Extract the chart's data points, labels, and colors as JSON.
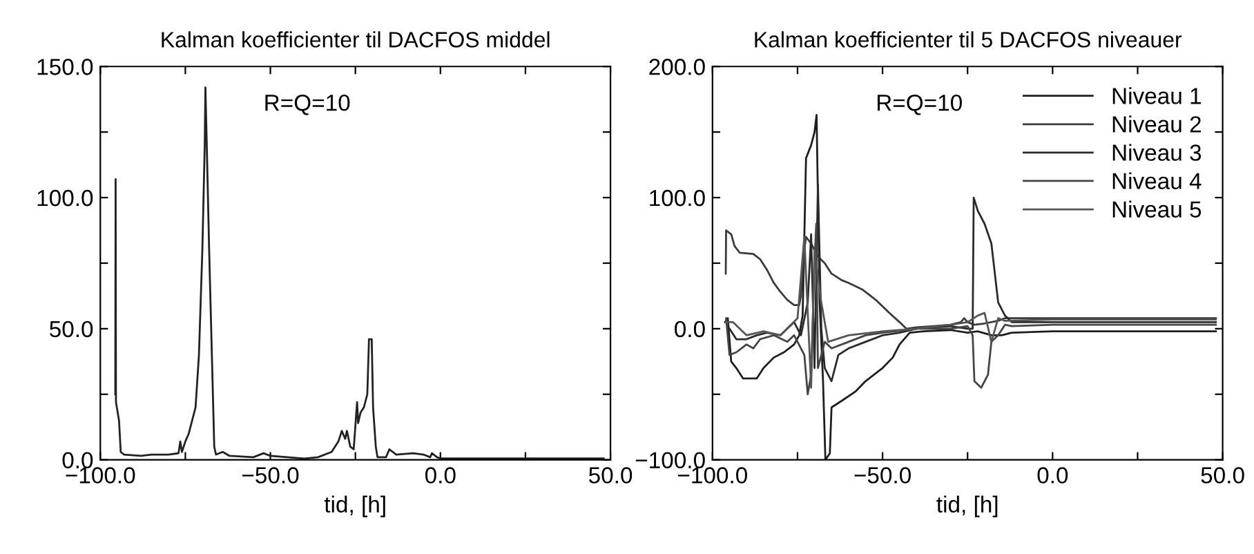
{
  "chart_data": [
    {
      "type": "line",
      "title": "Kalman koefficienter til DACFOS middel",
      "xlabel": "tid, [h]",
      "annotations": [
        "R=Q=10"
      ],
      "grid": false,
      "legend": false,
      "xlim": [
        -100,
        50
      ],
      "xticks": [
        {
          "value": -100,
          "label": "−100.0"
        },
        {
          "value": -75,
          "label": null
        },
        {
          "value": -50,
          "label": "−50.0"
        },
        {
          "value": -25,
          "label": null
        },
        {
          "value": 0,
          "label": "0.0"
        },
        {
          "value": 25,
          "label": null
        },
        {
          "value": 50,
          "label": "50.0"
        }
      ],
      "ylim": [
        0,
        150
      ],
      "yticks": [
        {
          "value": 0,
          "label": "0.0"
        },
        {
          "value": 25,
          "label": null
        },
        {
          "value": 50,
          "label": "50.0"
        },
        {
          "value": 75,
          "label": null
        },
        {
          "value": 100,
          "label": "100.0"
        },
        {
          "value": 125,
          "label": null
        },
        {
          "value": 150,
          "label": "150.0"
        }
      ],
      "series": [
        {
          "color": "#222222",
          "x": [
            -95.6,
            -95.5,
            -95.4,
            -94.5,
            -94,
            -93,
            -88,
            -85,
            -80,
            -77,
            -76.5,
            -76,
            -75,
            -74,
            -72,
            -71,
            -70,
            -69.3,
            -69.1,
            -68.7,
            -68,
            -67,
            -66.5,
            -66,
            -64,
            -62,
            -55,
            -52,
            -50,
            -45,
            -40,
            -36,
            -32,
            -30,
            -29,
            -28,
            -27.5,
            -26.5,
            -25.5,
            -24.5,
            -24.2,
            -23.5,
            -22.5,
            -21.5,
            -21,
            -20.2,
            -19.8,
            -19,
            -18.5,
            -16,
            -15,
            -13,
            -8,
            -5,
            -3,
            -2.5,
            -1,
            0,
            10,
            48
          ],
          "values": [
            25,
            107,
            22,
            15,
            3,
            2,
            1.5,
            2,
            2,
            2.5,
            7,
            3,
            7,
            10,
            20,
            40,
            80,
            120,
            142,
            120,
            80,
            30,
            5,
            2,
            3,
            1.5,
            1,
            2.5,
            1.5,
            1,
            0.5,
            1,
            3,
            7,
            11,
            8,
            11,
            5,
            4,
            22,
            14,
            18,
            20,
            25,
            46,
            46,
            20,
            5,
            1,
            1,
            4,
            2,
            2.5,
            2,
            1,
            2.5,
            1,
            0.5,
            0.5,
            0.5
          ]
        }
      ]
    },
    {
      "type": "line",
      "title": "Kalman koefficienter til 5 DACFOS niveauer",
      "xlabel": "tid, [h]",
      "annotations": [
        "R=Q=10"
      ],
      "grid": false,
      "legend": "top right",
      "xlim": [
        -100,
        50
      ],
      "xticks": [
        {
          "value": -100,
          "label": "−100.0"
        },
        {
          "value": -75,
          "label": null
        },
        {
          "value": -50,
          "label": "−50.0"
        },
        {
          "value": -25,
          "label": null
        },
        {
          "value": 0,
          "label": "0.0"
        },
        {
          "value": 25,
          "label": null
        },
        {
          "value": 50,
          "label": "50.0"
        }
      ],
      "ylim": [
        -100,
        200
      ],
      "yticks": [
        {
          "value": -100,
          "label": "−100.0"
        },
        {
          "value": -50,
          "label": null
        },
        {
          "value": 0,
          "label": "0.0"
        },
        {
          "value": 50,
          "label": null
        },
        {
          "value": 100,
          "label": "100.0"
        },
        {
          "value": 150,
          "label": null
        },
        {
          "value": 200,
          "label": "200.0"
        }
      ],
      "series": [
        {
          "name": "Niveau 1",
          "color": "#1e1e1e",
          "x": [
            -96.3,
            -95.5,
            -94.5,
            -93,
            -91,
            -87,
            -85,
            -82,
            -79,
            -76,
            -74.5,
            -73.5,
            -72.5,
            -71,
            -70,
            -69.4,
            -69,
            -68.5,
            -67.5,
            -66.8,
            -65.5,
            -65,
            -62,
            -58,
            -55,
            -50,
            -47,
            -45,
            -42,
            -38,
            -30,
            -25,
            -22,
            -18,
            -15,
            -12,
            0,
            48
          ],
          "values": [
            5,
            8,
            -25,
            -30,
            -38,
            -38,
            -30,
            -22,
            -18,
            -12,
            -5,
            10,
            130,
            140,
            150,
            163,
            100,
            20,
            -40,
            -100,
            -95,
            -60,
            -55,
            -48,
            -40,
            -30,
            -22,
            -12,
            -3,
            -2,
            -1,
            -3,
            -2,
            -5,
            -5,
            -3,
            -2,
            -2
          ]
        },
        {
          "name": "Niveau 2",
          "color": "#3a3a3a",
          "x": [
            -96.1,
            -96,
            -94.5,
            -93.5,
            -92,
            -88,
            -86,
            -84,
            -82,
            -80,
            -78,
            -76,
            -74.5,
            -74,
            -73,
            -72.5,
            -71,
            -69,
            -67,
            -65,
            -62,
            -60,
            -56,
            -52,
            -48,
            -45,
            -43,
            -40,
            -35,
            -30,
            -27,
            -26,
            -25,
            -23,
            -20,
            -16,
            -14,
            0,
            48
          ],
          "values": [
            42,
            75,
            72,
            63,
            58,
            57,
            53,
            45,
            35,
            28,
            22,
            18,
            18,
            25,
            60,
            70,
            65,
            55,
            50,
            42,
            37,
            35,
            30,
            22,
            12,
            5,
            0,
            1,
            2,
            3,
            5,
            8,
            5,
            3,
            4,
            6,
            8,
            8,
            8
          ]
        },
        {
          "name": "Niveau 3",
          "color": "#2a2a2a",
          "x": [
            -95,
            -93,
            -90,
            -87,
            -84,
            -80,
            -76,
            -74,
            -72,
            -71,
            -70,
            -69,
            -68,
            -67,
            -65,
            -63,
            -60,
            -55,
            -50,
            -45,
            -40,
            -30,
            -25,
            -23.5,
            -23.2,
            -22,
            -20,
            -18,
            -16,
            -14,
            -12,
            0,
            48
          ],
          "values": [
            0,
            -8,
            -8,
            -5,
            -3,
            -5,
            5,
            -5,
            20,
            72,
            -30,
            110,
            0,
            -30,
            -40,
            -20,
            -15,
            -10,
            -5,
            -3,
            0,
            2,
            0,
            0,
            100,
            90,
            80,
            65,
            20,
            10,
            5,
            5,
            5
          ]
        },
        {
          "name": "Niveau 4",
          "color": "#444444",
          "x": [
            -96,
            -95,
            -93,
            -90,
            -88,
            -86,
            -82,
            -78,
            -76,
            -73,
            -72,
            -71,
            -70,
            -69.5,
            -69,
            -67,
            -65,
            -60,
            -55,
            -50,
            -40,
            -30,
            -25,
            -23.5,
            -23,
            -21,
            -19,
            -18,
            -16,
            -14,
            -12,
            0,
            48
          ],
          "values": [
            8,
            -20,
            -18,
            -12,
            -15,
            -8,
            -5,
            -10,
            -5,
            -20,
            -50,
            -35,
            50,
            80,
            -30,
            -10,
            -15,
            -10,
            -5,
            -3,
            0,
            0,
            2,
            -5,
            -40,
            -45,
            -35,
            -10,
            -5,
            3,
            2,
            3,
            3
          ]
        },
        {
          "name": "Niveau 5",
          "color": "#555555",
          "x": [
            -96,
            -94,
            -90,
            -85,
            -80,
            -75,
            -73,
            -71,
            -70,
            -68,
            -66,
            -60,
            -50,
            -40,
            -30,
            -25,
            -22,
            -20,
            -18,
            -16,
            -14,
            0,
            48
          ],
          "values": [
            5,
            5,
            -5,
            -2,
            -5,
            8,
            70,
            -45,
            60,
            20,
            -10,
            -5,
            -2,
            0,
            3,
            5,
            10,
            12,
            -10,
            8,
            6,
            7,
            7
          ]
        }
      ]
    }
  ]
}
